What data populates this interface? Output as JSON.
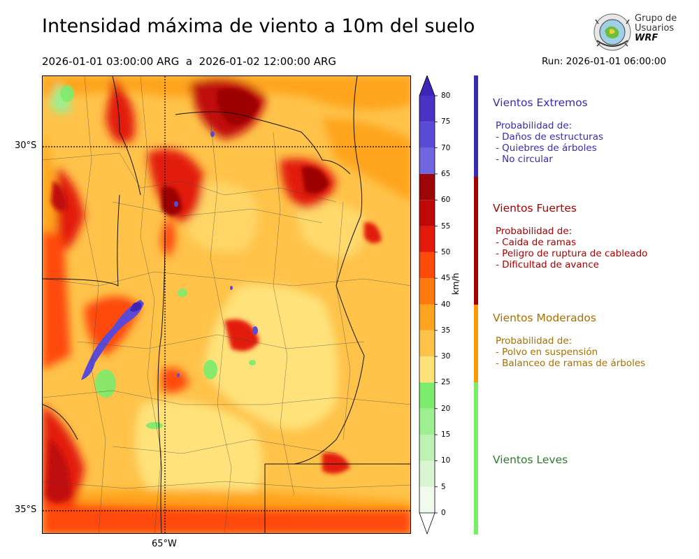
{
  "title": "Intensidad máxima de viento a 10m del suelo",
  "period": "2026-01-01 03:00:00 ARG  a  2026-01-02 12:00:00 ARG",
  "run": "Run: 2026-01-01 06:00:00",
  "logo": {
    "line1": "Grupo de",
    "line2": "Usuarios",
    "line3": "WRF"
  },
  "axes": {
    "lat_labels": [
      "30°S",
      "35°S"
    ],
    "lon_labels": [
      "65°W"
    ]
  },
  "colorbar": {
    "unit": "km/h",
    "ticks": [
      "0",
      "5",
      "10",
      "15",
      "20",
      "25",
      "30",
      "35",
      "40",
      "45",
      "50",
      "55",
      "60",
      "65",
      "70",
      "75",
      "80"
    ],
    "levels": [
      0,
      5,
      10,
      15,
      20,
      25,
      30,
      35,
      40,
      45,
      50,
      55,
      60,
      65,
      70,
      75,
      80
    ],
    "colors": [
      "#f0fbee",
      "#d8f6d0",
      "#bdf2b2",
      "#9def8f",
      "#7cec6c",
      "#ffe27a",
      "#ffc34a",
      "#ffa41f",
      "#ff7a0e",
      "#ff4a0a",
      "#e21a0c",
      "#c00808",
      "#9c0606",
      "#7166e0",
      "#5a4ad6",
      "#4a33c4",
      "#3f24b8"
    ]
  },
  "categories": [
    {
      "title": "Vientos Extremos",
      "color": "#3a2bb0",
      "lines": [
        "Probabilidad de:",
        "- Daños de estructuras",
        "- Quiebres de árboles",
        "- No circular"
      ]
    },
    {
      "title": "Vientos Fuertes",
      "color": "#a80000",
      "lines": [
        "Probabilidad de:",
        "- Caida de ramas",
        "- Peligro de ruptura de cableado",
        "- Dificultad de avance"
      ]
    },
    {
      "title": "Vientos Moderados",
      "color": "#a87000",
      "lines": [
        "Probabilidad de:",
        "- Polvo en suspensión",
        "- Balanceo de ramas de árboles"
      ]
    },
    {
      "title": "Vientos Leves",
      "color": "#2f7a2f",
      "lines": []
    }
  ],
  "category_bar_colors": [
    "#3a2bb0",
    "#a80000",
    "#ff9900",
    "#77ee66"
  ]
}
